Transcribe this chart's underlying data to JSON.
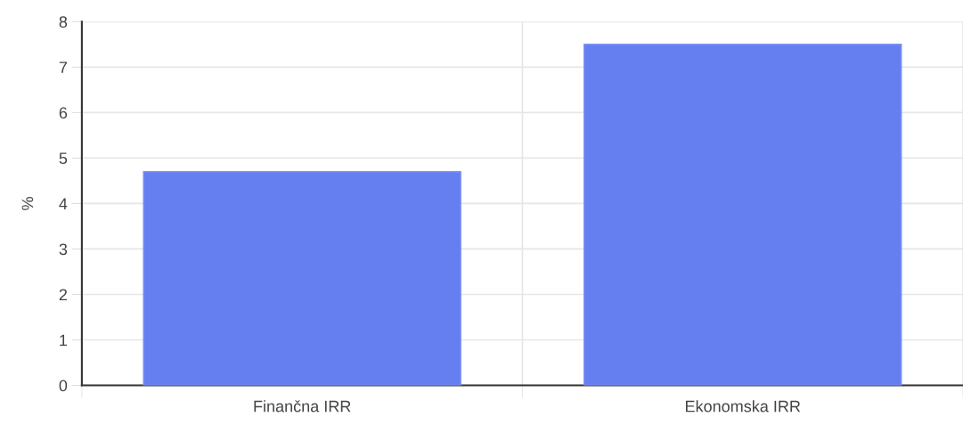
{
  "chart_data": {
    "type": "bar",
    "ylabel": "%",
    "categories": [
      "Finančna IRR",
      "Ekonomska IRR"
    ],
    "values": [
      4.7,
      7.5
    ],
    "color": "#657ef0",
    "ylim": [
      0,
      8
    ],
    "yticks": [
      0,
      1,
      2,
      3,
      4,
      5,
      6,
      7,
      8
    ],
    "grid": true
  }
}
